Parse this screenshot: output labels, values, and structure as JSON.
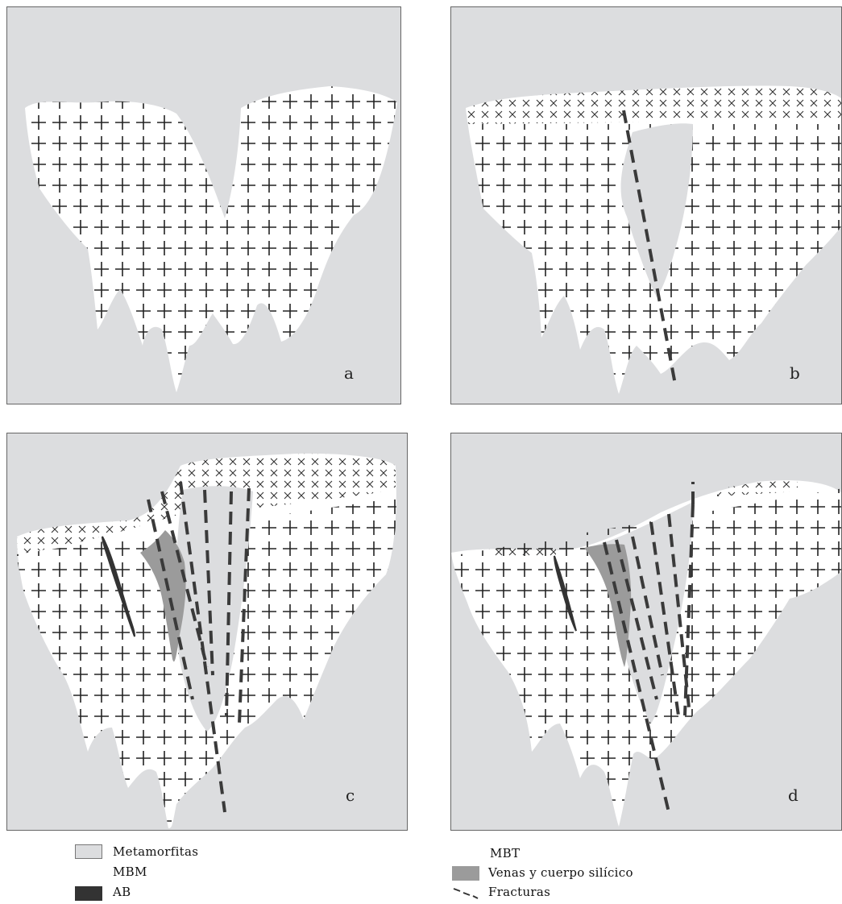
{
  "panels": [
    {
      "id": "a",
      "label": "a"
    },
    {
      "id": "b",
      "label": "b"
    },
    {
      "id": "c",
      "label": "c"
    },
    {
      "id": "d",
      "label": "d"
    }
  ],
  "legend": {
    "metamorfitas": "Metamorfitas",
    "mbm": "MBM",
    "ab": "AB",
    "mbt": "MBT",
    "venas": "Venas y cuerpo silícico",
    "fracturas": "Fracturas"
  },
  "colors": {
    "metamorphic": "#dcdddf",
    "granite": "#ffffff",
    "vein": "#9b9b9b",
    "ab_dike": "#333333",
    "fracture": "#3a3a3a"
  }
}
